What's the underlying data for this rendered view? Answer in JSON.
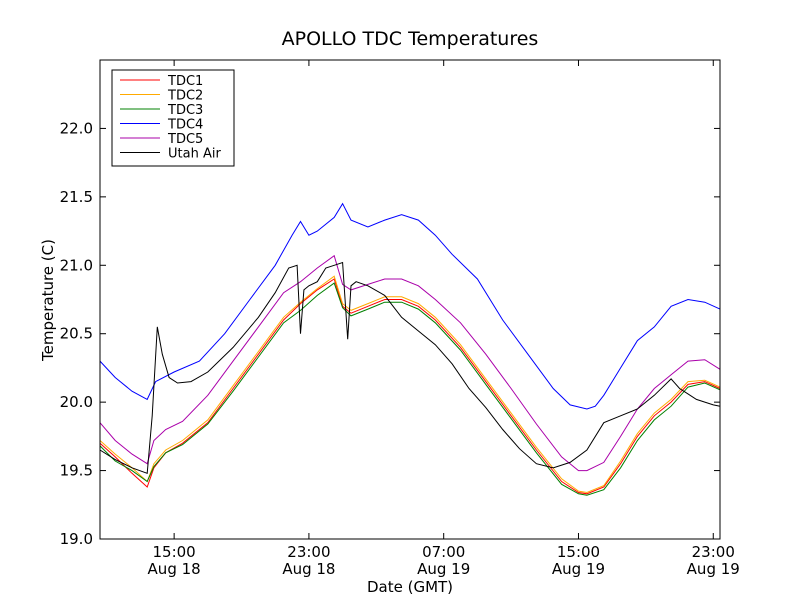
{
  "chart_data": {
    "type": "line",
    "title": "APOLLO TDC Temperatures",
    "xlabel": "Date (GMT)",
    "ylabel": "Temperature (C)",
    "x_unit": "hours since Aug 18 00:00 GMT",
    "xlim": [
      10.6,
      47.4
    ],
    "ylim": [
      19.0,
      22.5
    ],
    "yticks": [
      19.0,
      19.5,
      20.0,
      20.5,
      21.0,
      21.5,
      22.0
    ],
    "ytick_labels": [
      "19.0",
      "19.5",
      "20.0",
      "20.5",
      "21.0",
      "21.5",
      "22.0"
    ],
    "xticks": [
      {
        "x": 15,
        "time": "15:00",
        "date": "Aug 18"
      },
      {
        "x": 23,
        "time": "23:00",
        "date": "Aug 18"
      },
      {
        "x": 31,
        "time": "07:00",
        "date": "Aug 19"
      },
      {
        "x": 39,
        "time": "15:00",
        "date": "Aug 19"
      },
      {
        "x": 47,
        "time": "23:00",
        "date": "Aug 19"
      }
    ],
    "legend_position": "top-left",
    "series": [
      {
        "name": "TDC1",
        "color": "#ff0000",
        "x": [
          10.6,
          11.5,
          12.5,
          13.4,
          13.8,
          14.5,
          15.5,
          17.0,
          18.5,
          20.0,
          21.5,
          22.5,
          23.5,
          24.5,
          25.0,
          25.5,
          26.5,
          27.5,
          28.5,
          29.5,
          30.5,
          32.0,
          33.5,
          35.0,
          36.5,
          38.0,
          39.0,
          39.5,
          40.5,
          41.5,
          42.5,
          43.5,
          44.5,
          45.5,
          46.5,
          47.4
        ],
        "values": [
          19.7,
          19.6,
          19.48,
          19.38,
          19.52,
          19.63,
          19.7,
          19.85,
          20.1,
          20.35,
          20.6,
          20.72,
          20.82,
          20.9,
          20.7,
          20.65,
          20.7,
          20.75,
          20.75,
          20.7,
          20.6,
          20.4,
          20.15,
          19.9,
          19.65,
          19.42,
          19.34,
          19.33,
          19.38,
          19.55,
          19.75,
          19.9,
          20.0,
          20.13,
          20.15,
          20.1
        ]
      },
      {
        "name": "TDC2",
        "color": "#ffaa00",
        "x": [
          10.6,
          11.5,
          12.5,
          13.4,
          13.8,
          14.5,
          15.5,
          17.0,
          18.5,
          20.0,
          21.5,
          22.5,
          23.5,
          24.5,
          25.0,
          25.5,
          26.5,
          27.5,
          28.5,
          29.5,
          30.5,
          32.0,
          33.5,
          35.0,
          36.5,
          38.0,
          39.0,
          39.5,
          40.5,
          41.5,
          42.5,
          43.5,
          44.5,
          45.5,
          46.5,
          47.4
        ],
        "values": [
          19.72,
          19.62,
          19.52,
          19.42,
          19.55,
          19.65,
          19.72,
          19.87,
          20.12,
          20.37,
          20.62,
          20.73,
          20.83,
          20.92,
          20.72,
          20.67,
          20.72,
          20.77,
          20.77,
          20.72,
          20.62,
          20.42,
          20.17,
          19.92,
          19.67,
          19.44,
          19.35,
          19.34,
          19.39,
          19.57,
          19.77,
          19.92,
          20.02,
          20.15,
          20.16,
          20.11
        ]
      },
      {
        "name": "TDC3",
        "color": "#008000",
        "x": [
          10.6,
          11.5,
          12.5,
          13.4,
          13.8,
          14.5,
          15.5,
          17.0,
          18.5,
          20.0,
          21.5,
          22.5,
          23.5,
          24.5,
          25.0,
          25.5,
          26.5,
          27.5,
          28.5,
          29.5,
          30.5,
          32.0,
          33.5,
          35.0,
          36.5,
          38.0,
          39.0,
          39.5,
          40.5,
          41.5,
          42.5,
          43.5,
          44.5,
          45.5,
          46.5,
          47.4
        ],
        "values": [
          19.68,
          19.57,
          19.5,
          19.42,
          19.53,
          19.63,
          19.69,
          19.84,
          20.08,
          20.33,
          20.58,
          20.67,
          20.78,
          20.87,
          20.69,
          20.63,
          20.68,
          20.73,
          20.73,
          20.68,
          20.58,
          20.38,
          20.13,
          19.88,
          19.63,
          19.4,
          19.33,
          19.32,
          19.36,
          19.52,
          19.72,
          19.87,
          19.97,
          20.11,
          20.14,
          20.09
        ]
      },
      {
        "name": "TDC4",
        "color": "#0000ff",
        "x": [
          10.6,
          11.5,
          12.5,
          13.4,
          13.9,
          15.0,
          16.5,
          18.0,
          19.5,
          21.0,
          22.0,
          22.5,
          23.0,
          23.5,
          24.5,
          25.0,
          25.5,
          26.5,
          27.5,
          28.5,
          29.5,
          30.5,
          31.5,
          33.0,
          34.5,
          36.0,
          37.5,
          38.5,
          39.5,
          40.0,
          40.5,
          41.5,
          42.5,
          43.5,
          44.5,
          45.5,
          46.5,
          47.4
        ],
        "values": [
          20.3,
          20.18,
          20.08,
          20.02,
          20.15,
          20.22,
          20.3,
          20.5,
          20.75,
          21.0,
          21.22,
          21.32,
          21.22,
          21.25,
          21.35,
          21.45,
          21.33,
          21.28,
          21.33,
          21.37,
          21.33,
          21.22,
          21.08,
          20.9,
          20.6,
          20.35,
          20.1,
          19.98,
          19.95,
          19.97,
          20.05,
          20.25,
          20.45,
          20.55,
          20.7,
          20.75,
          20.73,
          20.68
        ]
      },
      {
        "name": "TDC5",
        "color": "#aa00aa",
        "x": [
          10.6,
          11.5,
          12.5,
          13.4,
          13.8,
          14.5,
          15.5,
          17.0,
          18.5,
          20.0,
          21.5,
          22.5,
          23.5,
          24.5,
          25.0,
          25.5,
          26.5,
          27.5,
          28.5,
          29.5,
          30.5,
          32.0,
          33.5,
          35.0,
          36.5,
          38.0,
          39.0,
          39.5,
          40.5,
          41.5,
          42.5,
          43.5,
          44.5,
          45.5,
          46.5,
          47.4
        ],
        "values": [
          19.85,
          19.72,
          19.62,
          19.55,
          19.72,
          19.8,
          19.86,
          20.05,
          20.3,
          20.55,
          20.8,
          20.88,
          20.98,
          21.07,
          20.86,
          20.82,
          20.86,
          20.9,
          20.9,
          20.85,
          20.75,
          20.58,
          20.35,
          20.1,
          19.84,
          19.6,
          19.5,
          19.5,
          19.56,
          19.75,
          19.95,
          20.1,
          20.2,
          20.3,
          20.31,
          20.24
        ]
      },
      {
        "name": "Utah Air",
        "color": "#000000",
        "x": [
          10.6,
          11.5,
          12.5,
          13.4,
          13.7,
          14.0,
          14.3,
          14.7,
          15.2,
          16.0,
          17.0,
          18.5,
          20.0,
          21.0,
          21.8,
          22.3,
          22.5,
          22.7,
          23.0,
          23.5,
          24.0,
          24.5,
          25.0,
          25.3,
          25.5,
          25.8,
          26.5,
          27.5,
          28.5,
          29.5,
          30.5,
          31.5,
          32.5,
          33.5,
          34.5,
          35.5,
          36.5,
          37.5,
          38.5,
          39.5,
          40.5,
          41.5,
          42.5,
          43.5,
          44.5,
          45.0,
          45.5,
          46.0,
          46.5,
          47.0,
          47.4
        ],
        "values": [
          19.65,
          19.58,
          19.52,
          19.48,
          19.9,
          20.55,
          20.35,
          20.18,
          20.14,
          20.15,
          20.22,
          20.4,
          20.62,
          20.8,
          20.98,
          21.0,
          20.5,
          20.82,
          20.85,
          20.88,
          20.98,
          21.0,
          21.02,
          20.46,
          20.85,
          20.88,
          20.85,
          20.78,
          20.62,
          20.52,
          20.42,
          20.28,
          20.1,
          19.96,
          19.8,
          19.66,
          19.55,
          19.52,
          19.56,
          19.65,
          19.85,
          19.9,
          19.95,
          20.05,
          20.17,
          20.1,
          20.06,
          20.02,
          20.0,
          19.98,
          19.97
        ]
      }
    ]
  }
}
